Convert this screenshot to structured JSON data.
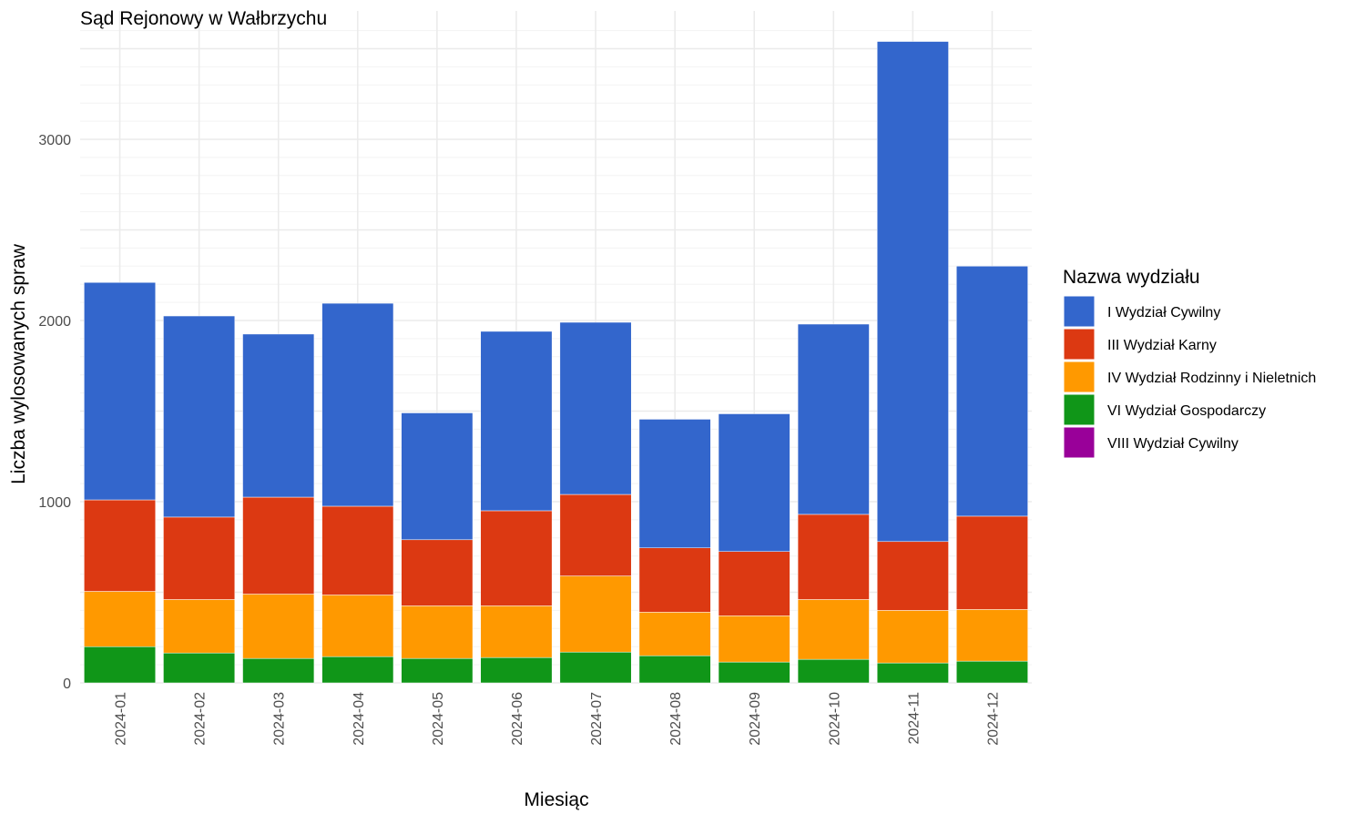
{
  "chart_data": {
    "type": "bar",
    "stacked": true,
    "title": "Sąd Rejonowy w Wałbrzychu",
    "xlabel": "Miesiąc",
    "ylabel": "Liczba wylosowanych spraw",
    "ylim": [
      0,
      3600
    ],
    "y_ticks": [
      0,
      1000,
      2000,
      3000
    ],
    "grid": true,
    "legend_position": "right",
    "legend_title": "Nazwa wydziału",
    "categories": [
      "2024-01",
      "2024-02",
      "2024-03",
      "2024-04",
      "2024-05",
      "2024-06",
      "2024-07",
      "2024-08",
      "2024-09",
      "2024-10",
      "2024-11",
      "2024-12"
    ],
    "series": [
      {
        "name": "I Wydział Cywilny",
        "color": "#3366CC",
        "values": [
          1200,
          1110,
          900,
          1120,
          700,
          990,
          950,
          710,
          760,
          1050,
          2760,
          1380
        ]
      },
      {
        "name": "III Wydział Karny",
        "color": "#DC3912",
        "values": [
          505,
          455,
          535,
          490,
          365,
          525,
          450,
          355,
          355,
          470,
          380,
          515
        ]
      },
      {
        "name": "IV Wydział Rodzinny i Nieletnich",
        "color": "#FF9900",
        "values": [
          305,
          295,
          355,
          340,
          290,
          285,
          420,
          240,
          255,
          330,
          290,
          285
        ]
      },
      {
        "name": "VI Wydział Gospodarczy",
        "color": "#109618",
        "values": [
          200,
          165,
          135,
          145,
          135,
          140,
          170,
          150,
          115,
          130,
          110,
          120
        ]
      },
      {
        "name": "VIII Wydział Cywilny",
        "color": "#990099",
        "values": [
          0,
          0,
          0,
          0,
          0,
          0,
          0,
          0,
          0,
          0,
          0,
          0
        ]
      }
    ]
  }
}
